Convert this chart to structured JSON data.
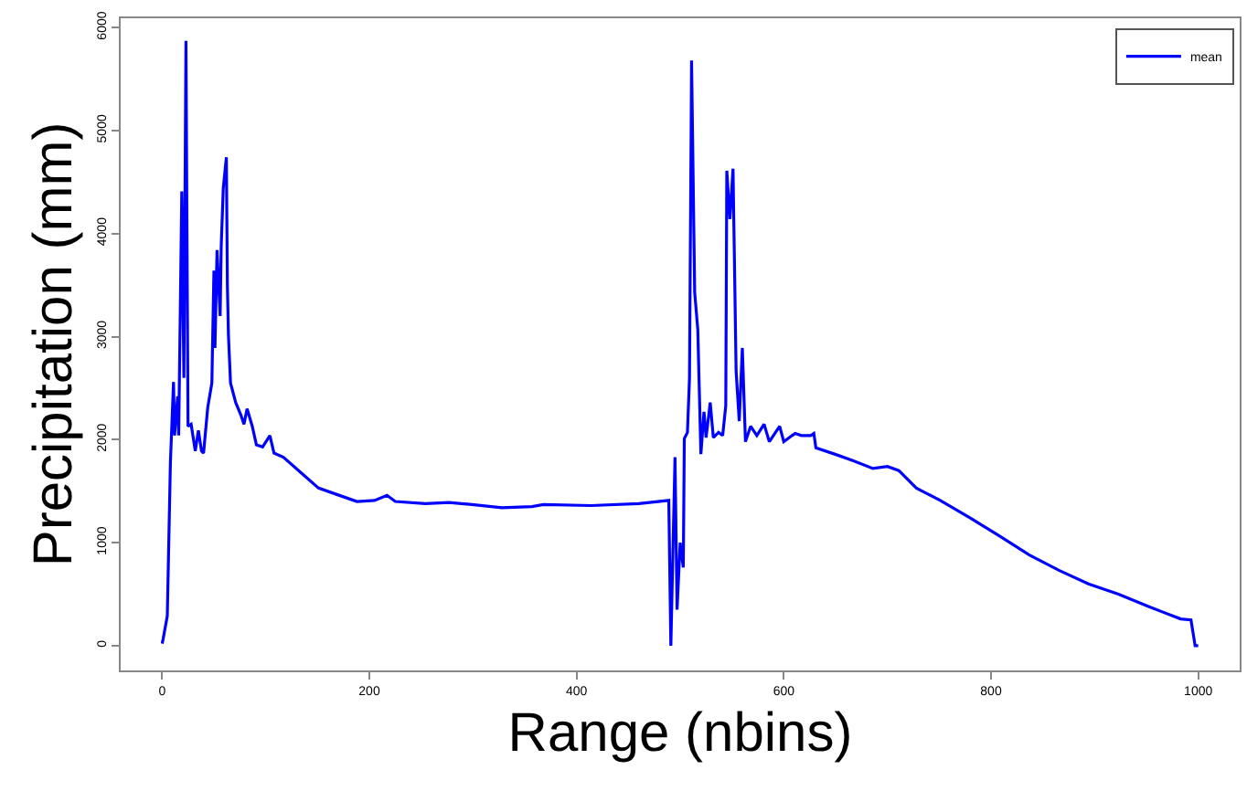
{
  "chart_data": {
    "type": "line",
    "xlabel": "Range (nbins)",
    "ylabel": "Precipitation (mm)",
    "xlim": [
      -40,
      1040
    ],
    "ylim": [
      -240,
      6090
    ],
    "xticks": [
      0,
      200,
      400,
      600,
      800,
      1000
    ],
    "yticks": [
      0,
      1000,
      2000,
      3000,
      4000,
      5000,
      6000
    ],
    "grid": false,
    "legend": "top right",
    "marker": "none",
    "line_style": "solid",
    "series": [
      {
        "name": "mean",
        "color": "#0000ff",
        "x": [
          0,
          1,
          5,
          8,
          11,
          12,
          15,
          16,
          19,
          21,
          23,
          25,
          28,
          32,
          35,
          38,
          40,
          44,
          48,
          50,
          51,
          53,
          56,
          57,
          59,
          62,
          63,
          64,
          66,
          71,
          76,
          79,
          82,
          87,
          91,
          97,
          104,
          108,
          117,
          134,
          151,
          168,
          188,
          205,
          217,
          225,
          254,
          277,
          299,
          328,
          357,
          368,
          414,
          460,
          489,
          491,
          495,
          497,
          500,
          503,
          504,
          507,
          509,
          511,
          514,
          517,
          520,
          523,
          525,
          529,
          532,
          537,
          541,
          544,
          545,
          548,
          551,
          554,
          557,
          560,
          563,
          568,
          574,
          581,
          586,
          596,
          600,
          608,
          611,
          617,
          626,
          629,
          631,
          649,
          666,
          686,
          700,
          711,
          728,
          751,
          780,
          809,
          837,
          866,
          894,
          923,
          952,
          983,
          993,
          997,
          1000
        ],
        "values": [
          20,
          66,
          290,
          1780,
          2560,
          2040,
          2420,
          2040,
          4410,
          2600,
          5870,
          2130,
          2150,
          1890,
          2090,
          1890,
          1870,
          2310,
          2550,
          3640,
          2890,
          3840,
          3200,
          3870,
          4440,
          4740,
          3490,
          3020,
          2550,
          2360,
          2240,
          2150,
          2300,
          2130,
          1950,
          1930,
          2040,
          1870,
          1830,
          1680,
          1530,
          1470,
          1400,
          1410,
          1460,
          1400,
          1380,
          1390,
          1370,
          1340,
          1350,
          1370,
          1360,
          1380,
          1410,
          0,
          1830,
          350,
          1000,
          760,
          2010,
          2070,
          2600,
          5680,
          3430,
          3070,
          1860,
          2270,
          2020,
          2360,
          2020,
          2070,
          2040,
          2330,
          4610,
          4140,
          4630,
          2660,
          2180,
          2890,
          1980,
          2130,
          2040,
          2150,
          1980,
          2130,
          1980,
          2040,
          2060,
          2040,
          2040,
          2060,
          1920,
          1860,
          1800,
          1720,
          1740,
          1700,
          1530,
          1410,
          1240,
          1060,
          880,
          730,
          600,
          500,
          380,
          260,
          250,
          0,
          0
        ]
      }
    ]
  }
}
